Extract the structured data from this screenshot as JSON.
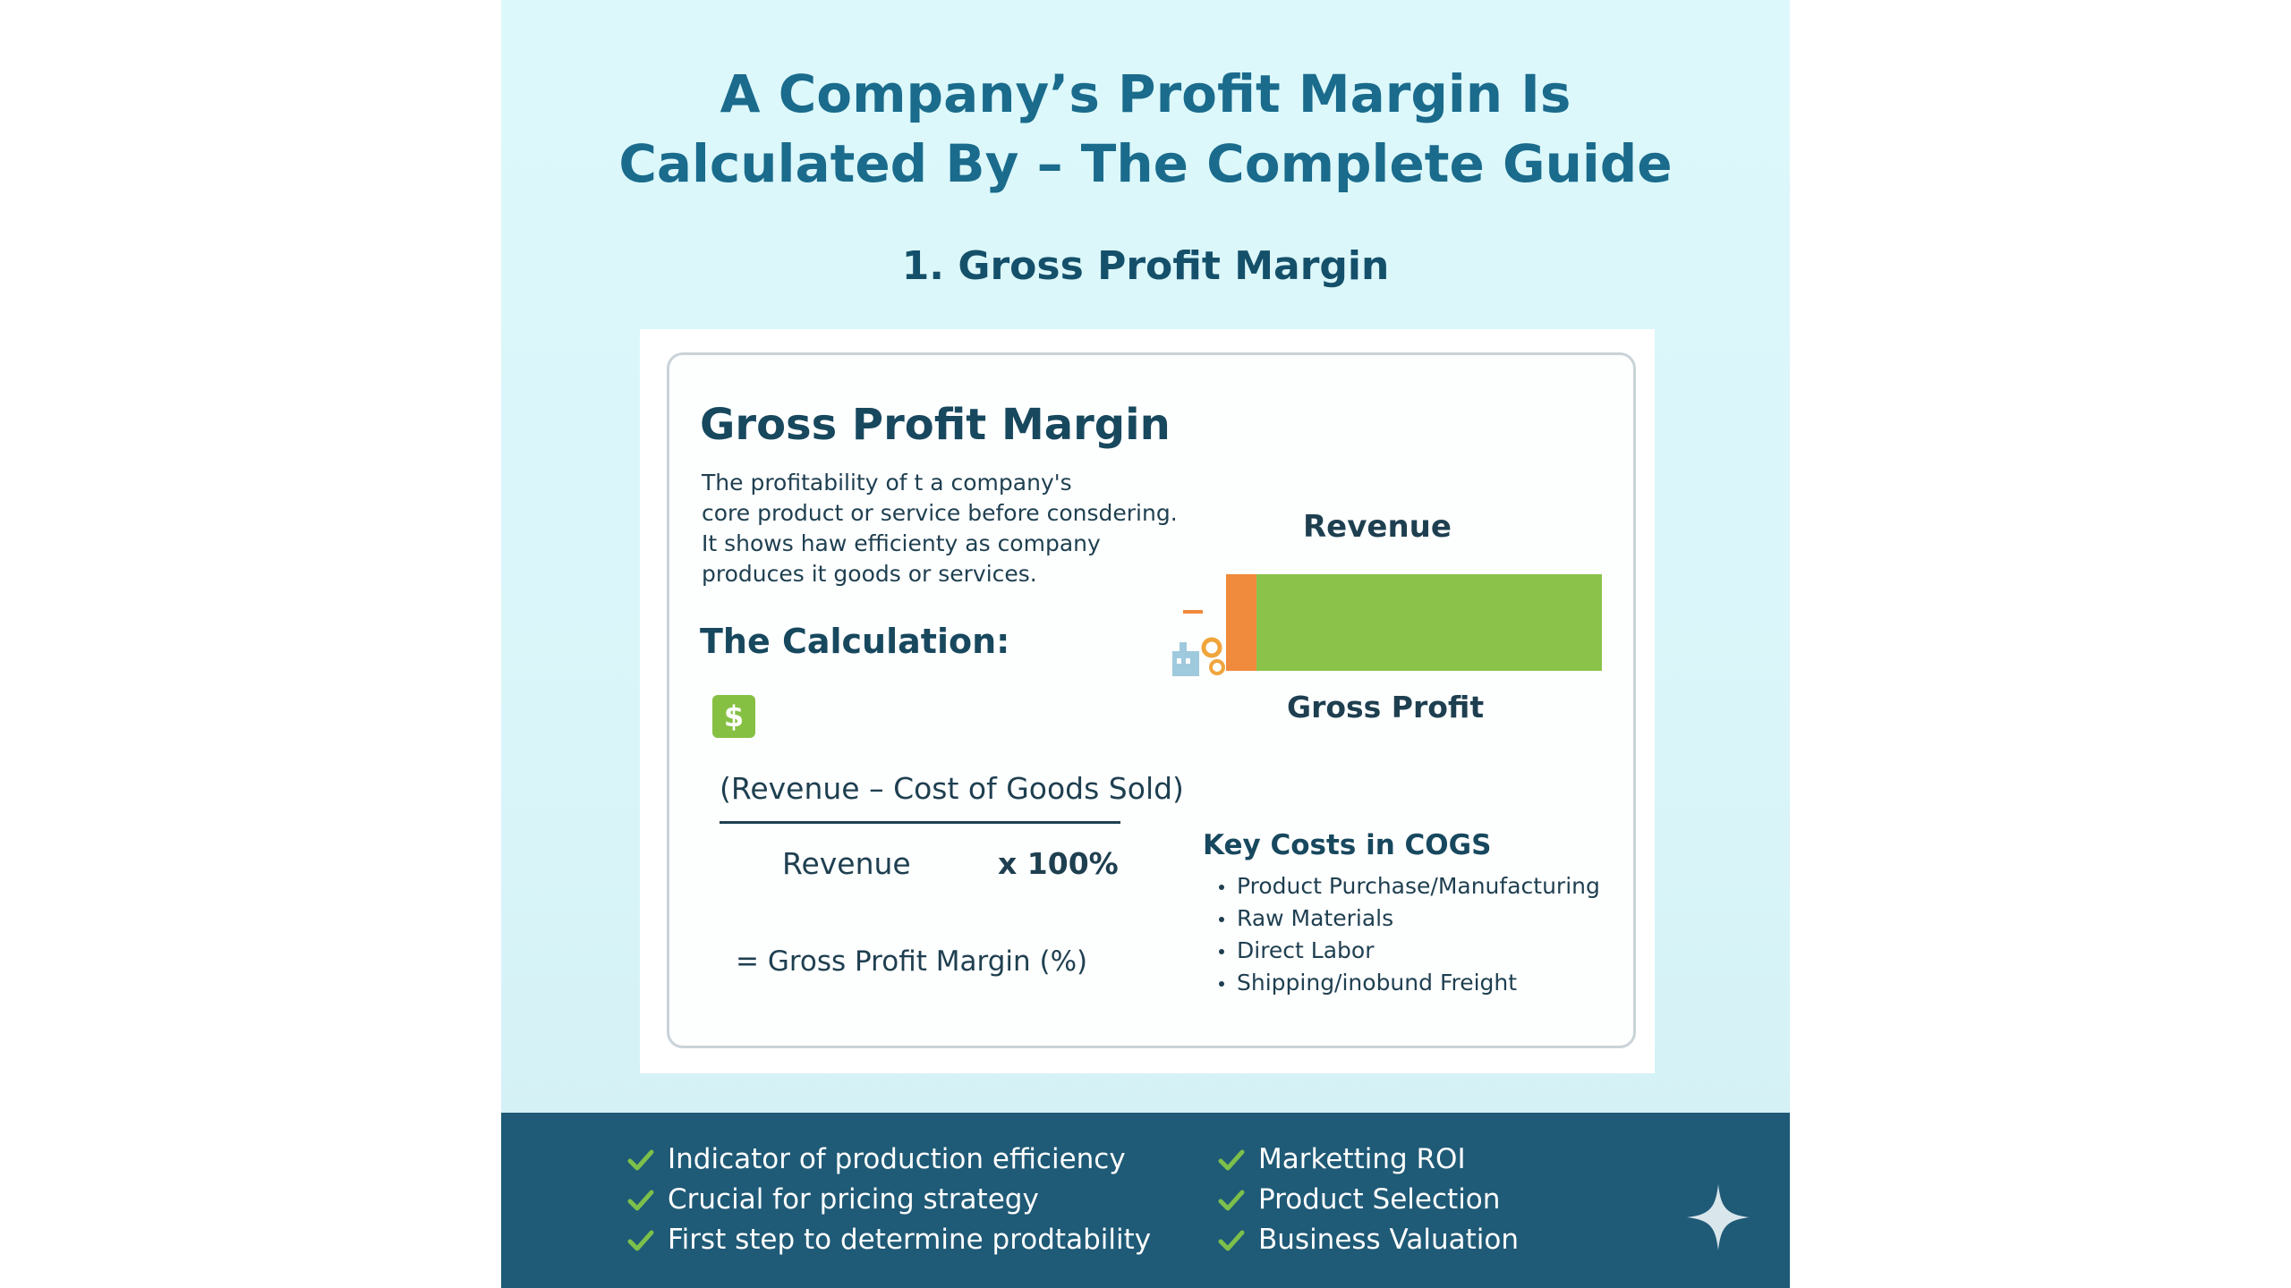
{
  "header": {
    "title_line1": "A Company’s Profit Margin Is",
    "title_line2": "Calculated By – The Complete Guide",
    "section": "1. Gross Profit Margin"
  },
  "card": {
    "title": "Gross Profit Margin",
    "description_lines": [
      "The profitability of t a company's",
      "core product or service before consdering.",
      "It shows haw efficienty as company",
      "produces it goods or services."
    ],
    "calc_title": "The Calculation:",
    "dollar_symbol": "$",
    "formula": {
      "numerator": "(Revenue – Cost of Goods Sold)",
      "denominator": "Revenue",
      "multiplier": "x 100%",
      "result": "= Gross Profit Margin (%)"
    },
    "bar": {
      "label_top": "Revenue",
      "label_bottom": "Gross Profit",
      "cost_color": "#f08a3c",
      "profit_color": "#8bc34a"
    },
    "cogs": {
      "title": "Key Costs in COGS",
      "items": [
        "Product Purchase/Manufacturing",
        "Raw Materials",
        "Direct Labor",
        "Shipping/inobund Freight"
      ]
    }
  },
  "footer": {
    "left_benefits": [
      "Indicator of production efficiency",
      "Crucial for pricing strategy",
      "First step to determine prodtability"
    ],
    "right_benefits": [
      "Marketting ROI",
      "Product Selection",
      "Business Valuation"
    ],
    "check_color": "#7cc04b",
    "background": "#1f5a76"
  }
}
